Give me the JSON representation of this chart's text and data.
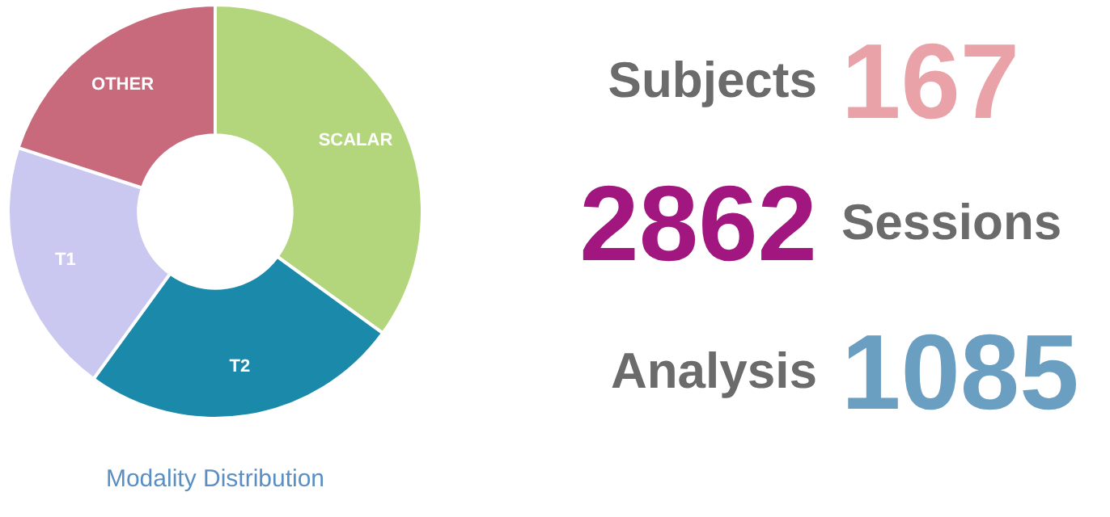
{
  "chart_data": [
    {
      "type": "donut",
      "title": "Modality Distribution",
      "categories": [
        "SCALAR",
        "T2",
        "T1",
        "OTHER"
      ],
      "values": [
        35,
        25,
        20,
        20
      ],
      "colors": [
        "#b3d57c",
        "#1b8aaa",
        "#cac8f0",
        "#c86a7c"
      ],
      "legend": false
    },
    {
      "type": "other",
      "annotations": [
        "Subjects",
        "167",
        "2862",
        "Sessions",
        "Analysis",
        "1085"
      ],
      "colors": [
        "#6b6b6b",
        "#e9a3a8",
        "#a1167f",
        "#6b6b6b",
        "#6b6b6b",
        "#6b9fc2"
      ]
    }
  ]
}
